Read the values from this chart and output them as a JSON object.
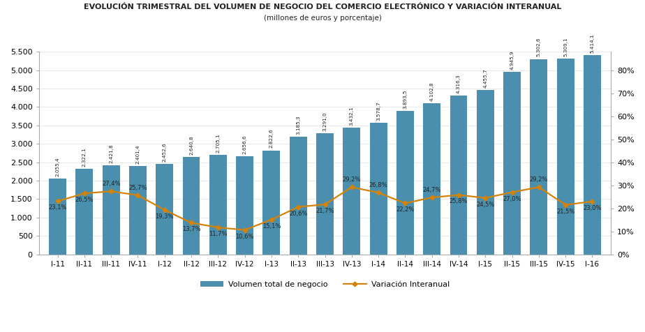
{
  "categories": [
    "I-11",
    "II-11",
    "III-11",
    "IV-11",
    "I-12",
    "II-12",
    "III-12",
    "IV-12",
    "I-13",
    "II-13",
    "III-13",
    "IV-13",
    "I-14",
    "II-14",
    "III-14",
    "IV-14",
    "I-15",
    "II-15",
    "III-15",
    "IV-15",
    "I-16"
  ],
  "bar_values": [
    2055.4,
    2322.1,
    2421.8,
    2401.4,
    2452.6,
    2640.8,
    2705.1,
    2656.6,
    2822.6,
    3185.3,
    3291.0,
    3432.1,
    3578.7,
    3893.5,
    4102.8,
    4316.3,
    4455.7,
    4945.9,
    5302.6,
    5309.1,
    5414.1
  ],
  "bar_labels": [
    "2.055,4",
    "2.322,1",
    "2.421,8",
    "2.401,4",
    "2.452,6",
    "2.640,8",
    "2.705,1",
    "2.656,6",
    "2.822,6",
    "3.185,3",
    "3.291,0",
    "3.432,1",
    "3.578,7",
    "3.893,5",
    "4.102,8",
    "4.316,3",
    "4.455,7",
    "4.945,9",
    "5.302,6",
    "5.309,1",
    "5.414,1"
  ],
  "line_values": [
    23.1,
    26.5,
    27.4,
    25.7,
    19.3,
    13.7,
    11.7,
    10.6,
    15.1,
    20.6,
    21.7,
    29.2,
    26.8,
    22.2,
    24.7,
    25.8,
    24.5,
    27.0,
    29.2,
    21.5,
    23.0
  ],
  "line_labels": [
    "23,1%",
    "26,5%",
    "27,4%",
    "25,7%",
    "19,3%",
    "13,7%",
    "11,7%",
    "10,6%",
    "15,1%",
    "20,6%",
    "21,7%",
    "29,2%",
    "26,8%",
    "22,2%",
    "24,7%",
    "25,8%",
    "24,5%",
    "27,0%",
    "29,2%",
    "21,5%",
    "23,0%"
  ],
  "bar_color": "#4a8fad",
  "line_color": "#d4820a",
  "ylim_left": [
    0,
    5500
  ],
  "ylim_right": [
    0,
    88
  ],
  "yticks_left": [
    0,
    500,
    1000,
    1500,
    2000,
    2500,
    3000,
    3500,
    4000,
    4500,
    5000,
    5500
  ],
  "yticks_right": [
    0,
    10,
    20,
    30,
    40,
    50,
    60,
    70,
    80
  ],
  "title": "EVOLUCIÓN TRIMESTRAL DEL VOLUMEN DE NEGOCIO DEL COMERCIO ELECTRÓNICO Y VARIACIÓN INTERANUAL",
  "subtitle": "(millones de euros y porcentaje)",
  "legend_bar": "Volumen total de negocio",
  "legend_line": "Variación Interanual",
  "background_color": "#ffffff",
  "grid_color": "#e8e8e8",
  "spine_color": "#aaaaaa"
}
